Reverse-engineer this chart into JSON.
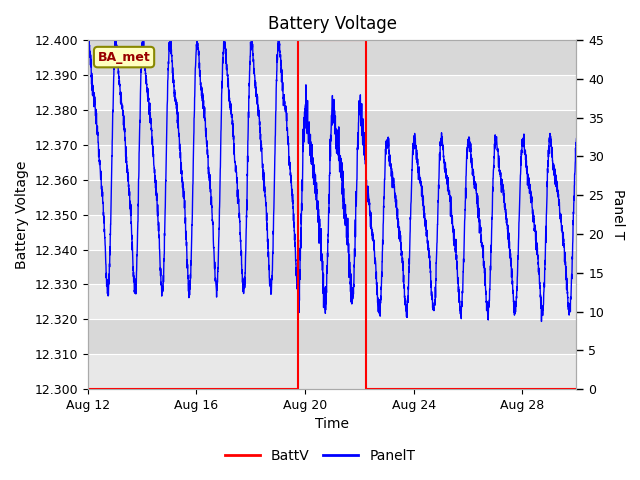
{
  "title": "Battery Voltage",
  "xlabel": "Time",
  "ylabel_left": "Battery Voltage",
  "ylabel_right": "Panel T",
  "ylim_left": [
    12.3,
    12.4
  ],
  "ylim_right": [
    0,
    45
  ],
  "xlim": [
    0,
    18
  ],
  "x_ticks": [
    0,
    4,
    8,
    12,
    16
  ],
  "x_tick_labels": [
    "Aug 12",
    "Aug 16",
    "Aug 20",
    "Aug 24",
    "Aug 28"
  ],
  "y_ticks_left": [
    12.3,
    12.31,
    12.32,
    12.33,
    12.34,
    12.35,
    12.36,
    12.37,
    12.38,
    12.39,
    12.4
  ],
  "y_ticks_right": [
    0,
    5,
    10,
    15,
    20,
    25,
    30,
    35,
    40,
    45
  ],
  "band_colors": [
    "#e8e8e8",
    "#d8d8d8"
  ],
  "grid_color": "white",
  "line_color_battv": "red",
  "line_color_panelt": "blue",
  "legend_label_battv": "BattV",
  "legend_label_panelt": "PanelT",
  "badge_text": "BA_met",
  "badge_bg": "#ffffc0",
  "badge_border": "#888800",
  "badge_text_color": "#990000",
  "vline1_x": 7.75,
  "vline2_x": 10.25,
  "battv_step_x": [
    0,
    7.75,
    7.75,
    10.25,
    10.25,
    18
  ],
  "battv_step_y": [
    12.3,
    12.3,
    12.4,
    12.4,
    12.3,
    12.3
  ]
}
